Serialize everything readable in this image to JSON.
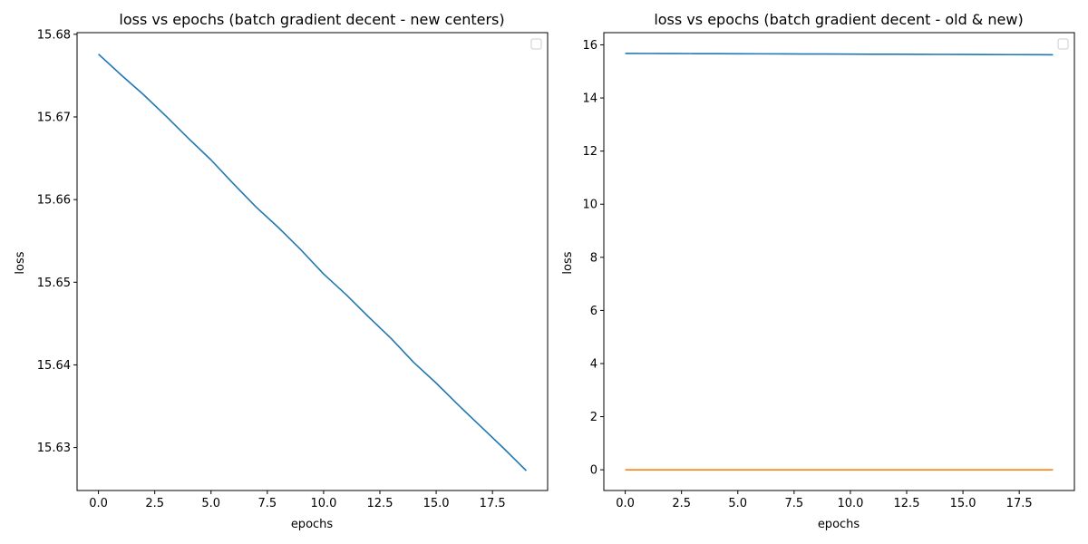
{
  "chart_data": [
    {
      "type": "line",
      "title": "loss vs epochs (batch gradient decent - new centers)",
      "xlabel": "epochs",
      "ylabel": "loss",
      "xlim": [
        -0.95,
        19.95
      ],
      "ylim": [
        15.6248,
        15.6802
      ],
      "xticks": [
        0.0,
        2.5,
        5.0,
        7.5,
        10.0,
        12.5,
        15.0,
        17.5
      ],
      "xtick_labels": [
        "0.0",
        "2.5",
        "5.0",
        "7.5",
        "10.0",
        "12.5",
        "15.0",
        "17.5"
      ],
      "yticks": [
        15.63,
        15.64,
        15.65,
        15.66,
        15.67,
        15.68
      ],
      "ytick_labels": [
        "15.63",
        "15.64",
        "15.65",
        "15.66",
        "15.67",
        "15.68"
      ],
      "grid": false,
      "legend": "top-right (empty)",
      "series": [
        {
          "color": "#1f77b4",
          "x": [
            0,
            1,
            2,
            3,
            4,
            5,
            6,
            7,
            8,
            9,
            10,
            11,
            12,
            13,
            14,
            15,
            16,
            17,
            18,
            19
          ],
          "values": [
            15.6776,
            15.6751,
            15.6727,
            15.6701,
            15.6674,
            15.6648,
            15.6619,
            15.6591,
            15.6566,
            15.6539,
            15.651,
            15.6485,
            15.6458,
            15.6432,
            15.6403,
            15.6378,
            15.6351,
            15.6325,
            15.6299,
            15.6272
          ]
        }
      ]
    },
    {
      "type": "line",
      "title": "loss vs epochs (batch gradient decent - old & new)",
      "xlabel": "epochs",
      "ylabel": "loss",
      "xlim": [
        -0.95,
        19.95
      ],
      "ylim": [
        -0.78,
        16.46
      ],
      "xticks": [
        0.0,
        2.5,
        5.0,
        7.5,
        10.0,
        12.5,
        15.0,
        17.5
      ],
      "xtick_labels": [
        "0.0",
        "2.5",
        "5.0",
        "7.5",
        "10.0",
        "12.5",
        "15.0",
        "17.5"
      ],
      "yticks": [
        0,
        2,
        4,
        6,
        8,
        10,
        12,
        14,
        16
      ],
      "ytick_labels": [
        "0",
        "2",
        "4",
        "6",
        "8",
        "10",
        "12",
        "14",
        "16"
      ],
      "grid": false,
      "legend": "top-right (empty)",
      "series": [
        {
          "color": "#1f77b4",
          "x": [
            0,
            1,
            2,
            3,
            4,
            5,
            6,
            7,
            8,
            9,
            10,
            11,
            12,
            13,
            14,
            15,
            16,
            17,
            18,
            19
          ],
          "values": [
            15.6776,
            15.6751,
            15.6727,
            15.6701,
            15.6674,
            15.6648,
            15.6619,
            15.6591,
            15.6566,
            15.6539,
            15.651,
            15.6485,
            15.6458,
            15.6432,
            15.6403,
            15.6378,
            15.6351,
            15.6325,
            15.6299,
            15.6272
          ]
        },
        {
          "color": "#ff7f0e",
          "x": [
            0,
            1,
            2,
            3,
            4,
            5,
            6,
            7,
            8,
            9,
            10,
            11,
            12,
            13,
            14,
            15,
            16,
            17,
            18,
            19
          ],
          "values": [
            0.0,
            0.0,
            0.0,
            0.0,
            0.0,
            0.0,
            0.0,
            0.0,
            0.0,
            0.0,
            0.0,
            0.0,
            0.0,
            0.0,
            0.0,
            0.0,
            0.0,
            0.0,
            0.0,
            0.0
          ]
        }
      ]
    }
  ]
}
